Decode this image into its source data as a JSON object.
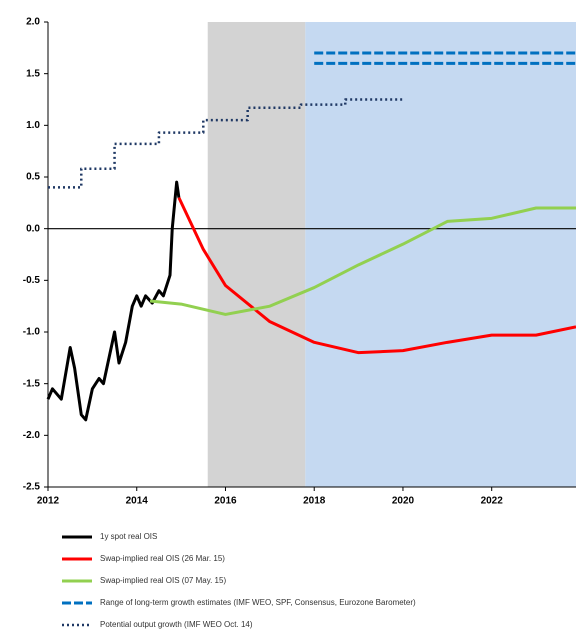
{
  "chart_data": {
    "type": "line",
    "xlim": [
      2012,
      2023.9
    ],
    "xticks": [
      2012,
      2014,
      2016,
      2018,
      2020,
      2022
    ],
    "ylim": [
      -2.5,
      2.0
    ],
    "yticks": [
      {
        "value": 2.0,
        "label": "2.0"
      },
      1.5,
      {
        "value": 1.0,
        "label": "1.0"
      },
      0.5,
      {
        "value": 0.0,
        "label": "0.0"
      },
      -0.5,
      {
        "value": -1.0,
        "label": "-1.0"
      },
      -1.5,
      {
        "value": -2.0,
        "label": "-2.0"
      },
      -2.5
    ],
    "shaded": [
      {
        "x": [
          2015.6,
          2017.8
        ],
        "color": "#d3d3d3"
      },
      {
        "x": [
          2017.8,
          2023.9
        ],
        "color": "#c5d9f1"
      }
    ],
    "series": [
      {
        "name": "1y spot real OIS",
        "color": "#000000",
        "style": "solid",
        "x": [
          2012.0,
          2012.1,
          2012.3,
          2012.5,
          2012.6,
          2012.75,
          2012.85,
          2013.0,
          2013.15,
          2013.25,
          2013.35,
          2013.5,
          2013.6,
          2013.75,
          2013.9,
          2014.0,
          2014.1,
          2014.2,
          2014.35,
          2014.5,
          2014.6,
          2014.75,
          2014.8,
          2014.9,
          2014.95
        ],
        "values": [
          -1.65,
          -1.55,
          -1.65,
          -1.15,
          -1.35,
          -1.8,
          -1.85,
          -1.55,
          -1.45,
          -1.5,
          -1.3,
          -1.0,
          -1.3,
          -1.1,
          -0.75,
          -0.65,
          -0.75,
          -0.65,
          -0.72,
          -0.6,
          -0.65,
          -0.45,
          0.0,
          0.45,
          0.3
        ]
      },
      {
        "name": "Swap-implied real OIS (26 Mar. 15)",
        "color": "#ff0000",
        "style": "solid",
        "x": [
          2014.95,
          2015.5,
          2016,
          2017,
          2018,
          2019,
          2020,
          2021,
          2022,
          2023,
          2023.9
        ],
        "values": [
          0.3,
          -0.2,
          -0.55,
          -0.9,
          -1.1,
          -1.2,
          -1.18,
          -1.1,
          -1.03,
          -1.03,
          -0.95
        ]
      },
      {
        "name": "Swap-implied real OIS (07 May. 15)",
        "color": "#92d050",
        "style": "solid",
        "x": [
          2014.3,
          2015,
          2016,
          2017,
          2018,
          2019,
          2020,
          2021,
          2022,
          2023,
          2023.9
        ],
        "values": [
          -0.7,
          -0.73,
          -0.83,
          -0.75,
          -0.57,
          -0.35,
          -0.15,
          0.07,
          0.1,
          0.2,
          0.2
        ]
      },
      {
        "name": "Range of long-term growth estimates (IMF WEO, SPF, Consensus, Eurozone Barometer)",
        "color": "#0070c0",
        "style": "dashed",
        "x": [
          2018,
          2023.9
        ],
        "values": [
          1.7,
          1.7
        ]
      },
      {
        "color": "#0070c0",
        "style": "dashed",
        "x": [
          2018,
          2023.9
        ],
        "values": [
          1.6,
          1.6
        ]
      },
      {
        "name": "Potential output growth (IMF WEO Oct. 14)",
        "color": "#1f3864",
        "style": "dotted",
        "x": [
          2012,
          2012.75,
          2012.75,
          2013.5,
          2013.5,
          2014.5,
          2014.5,
          2015.5,
          2015.5,
          2016.5,
          2016.5,
          2017.7,
          2017.7,
          2018.7,
          2018.7,
          2020
        ],
        "values": [
          0.4,
          0.4,
          0.58,
          0.58,
          0.82,
          0.82,
          0.93,
          0.93,
          1.05,
          1.05,
          1.17,
          1.17,
          1.2,
          1.2,
          1.25,
          1.25
        ]
      }
    ]
  }
}
